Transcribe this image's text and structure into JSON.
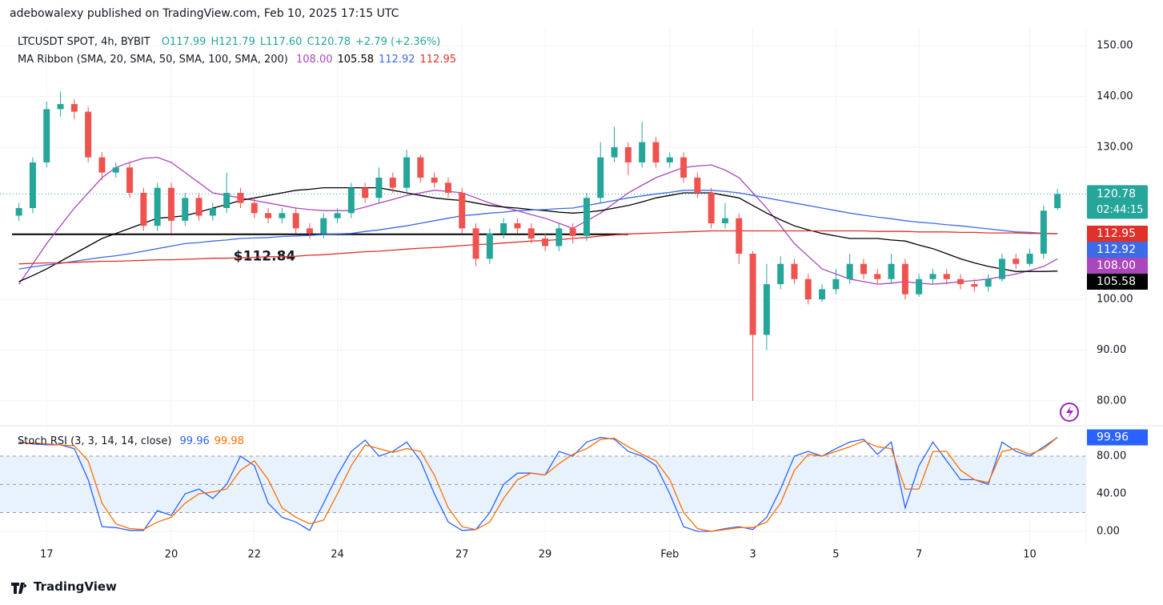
{
  "attribution": "adebowalexy published on TradingView.com, Feb 10, 2025 17:15 UTC",
  "footer": "TradingView",
  "chart_data": [
    {
      "type": "candlestick",
      "title": "LTCUSDT SPOT, 4h, BYBIT",
      "ohlc_labels": [
        "O117.99",
        "H121.79",
        "L117.60",
        "C120.78",
        "+2.79 (+2.36%)"
      ],
      "up_color": "#26a69a",
      "down_color": "#ef5350",
      "categories": [
        null,
        null,
        "17",
        null,
        null,
        null,
        null,
        null,
        null,
        null,
        null,
        "20",
        null,
        null,
        null,
        null,
        null,
        "22",
        null,
        null,
        null,
        null,
        null,
        "24",
        null,
        null,
        null,
        null,
        null,
        null,
        null,
        null,
        "27",
        null,
        null,
        null,
        null,
        null,
        "29",
        null,
        null,
        null,
        null,
        null,
        null,
        null,
        null,
        "Feb",
        null,
        null,
        null,
        null,
        null,
        "3",
        null,
        null,
        null,
        null,
        null,
        "5",
        null,
        null,
        null,
        null,
        null,
        "7",
        null,
        null,
        null,
        null,
        null,
        null,
        null,
        "10",
        null,
        null
      ],
      "open": [
        116.5,
        118,
        127,
        137.5,
        138.5,
        137,
        128,
        125,
        126,
        121,
        114.5,
        122,
        115.5,
        120,
        116.5,
        118,
        121,
        119,
        117,
        116,
        117,
        114,
        113,
        116,
        117,
        122,
        120,
        124,
        122,
        128,
        124,
        123,
        121,
        114,
        108,
        113,
        115,
        114,
        112,
        110.5,
        114,
        112.5,
        120,
        128,
        130,
        127,
        131,
        127,
        128,
        124,
        121,
        115,
        116,
        109,
        93,
        103,
        107,
        104,
        100,
        102,
        104,
        107,
        105,
        104,
        107,
        101,
        104,
        105,
        104,
        103,
        102.5,
        104,
        108,
        107,
        109,
        117.99
      ],
      "high": [
        119,
        128,
        139,
        141,
        139.5,
        138,
        129,
        127,
        127,
        122,
        123,
        123,
        121,
        121,
        119,
        125,
        122,
        120,
        118,
        118,
        118,
        115,
        117,
        118,
        123,
        123,
        126,
        125,
        129.5,
        128.5,
        125,
        124,
        122,
        115,
        114,
        116,
        116,
        115,
        113,
        115,
        115,
        121,
        131,
        134,
        131,
        135,
        132,
        129,
        129,
        125,
        122,
        119,
        117,
        109.5,
        107,
        108.5,
        108,
        105,
        103,
        106,
        109,
        108,
        106,
        109,
        108,
        105,
        106,
        106,
        105,
        104,
        105,
        109,
        109,
        110,
        118.5,
        121.79
      ],
      "low": [
        115.5,
        117,
        126,
        136,
        135.5,
        127,
        123.5,
        124,
        120,
        113.5,
        113.5,
        113,
        114.5,
        115.5,
        115.5,
        117,
        118,
        116,
        115,
        115,
        113,
        112,
        112,
        115,
        116,
        119,
        119,
        121,
        121,
        123,
        122,
        120,
        113,
        106.5,
        107,
        112,
        113,
        111,
        109.5,
        109.5,
        111,
        111.5,
        119,
        127,
        124.5,
        126,
        126,
        126,
        123,
        120,
        114,
        114,
        107,
        80,
        90,
        102,
        103,
        99,
        99.5,
        101,
        103,
        104,
        103,
        103,
        100,
        100.5,
        103,
        103,
        102,
        101.5,
        101.5,
        103.5,
        106,
        106.5,
        108,
        117.6
      ],
      "close": [
        118,
        127,
        137.5,
        138.5,
        137,
        128,
        125,
        126,
        121,
        114.5,
        122,
        115.5,
        120,
        116.5,
        118,
        121,
        119,
        117,
        116,
        117,
        114,
        113,
        116,
        117,
        122,
        120,
        124,
        122,
        128,
        124,
        123,
        121,
        114,
        108,
        113,
        115,
        114,
        112,
        110.5,
        114,
        112.5,
        120,
        128,
        130,
        127,
        131,
        127,
        128,
        124,
        121,
        115,
        116,
        109,
        93,
        103,
        107,
        104,
        100,
        102,
        104,
        107,
        105,
        104,
        107,
        101,
        104,
        105,
        104,
        103,
        102.5,
        104,
        108,
        107,
        109,
        117.5,
        120.78
      ],
      "ma_label": "MA Ribbon (SMA, 20, SMA, 50, SMA, 100, SMA, 200)",
      "series": [
        {
          "color": "#ab47bc",
          "last_label": "108.00",
          "values": [
            103,
            107,
            111,
            114.5,
            118,
            121,
            124,
            126,
            127,
            127.8,
            128,
            127,
            125,
            123,
            121,
            120.5,
            120,
            119.5,
            119,
            118.5,
            118,
            117.7,
            117.5,
            117.5,
            117.5,
            118.2,
            119,
            119.7,
            120.5,
            121,
            121.5,
            121.3,
            121,
            120,
            119,
            118.2,
            117.5,
            116.7,
            116,
            115,
            114,
            115.5,
            117,
            119,
            121,
            122.5,
            124,
            125,
            126,
            126.3,
            126.5,
            125.5,
            124,
            121,
            118,
            114.5,
            111,
            108.5,
            106,
            105,
            104,
            103.5,
            103,
            103.2,
            103.5,
            103.2,
            103,
            103.2,
            103.5,
            103.7,
            104,
            104.5,
            105,
            105.7,
            106.5,
            108
          ]
        },
        {
          "color": "#000000",
          "last_label": "105.58",
          "values": [
            103.5,
            104.7,
            106,
            107.5,
            109,
            110.5,
            112,
            113,
            114,
            115,
            116,
            116.2,
            116.5,
            117.2,
            118,
            118.7,
            119.5,
            120,
            120.5,
            121,
            121.5,
            121.7,
            122,
            122,
            122,
            122,
            122,
            121.5,
            121,
            120.5,
            120,
            119.7,
            119.5,
            119,
            118.5,
            118.2,
            118,
            117.7,
            117.5,
            117.2,
            117,
            117.2,
            117.5,
            118,
            118.5,
            119.2,
            120,
            120.5,
            121,
            121,
            121,
            120.5,
            120,
            118.5,
            117,
            115.7,
            114.5,
            113.7,
            113,
            112.5,
            112,
            112,
            112,
            111.7,
            111.5,
            110.7,
            110,
            109,
            108,
            107.2,
            106.5,
            106,
            105.5,
            105.5,
            105.5,
            105.58
          ]
        },
        {
          "color": "#3d6ae6",
          "last_label": "112.92",
          "values": [
            106,
            106.4,
            106.8,
            107.1,
            107.5,
            107.9,
            108.3,
            108.6,
            109,
            109.5,
            110,
            110.5,
            111,
            111.2,
            111.5,
            111.7,
            112,
            112.1,
            112.2,
            112.4,
            112.5,
            112.6,
            112.8,
            112.9,
            113,
            113.4,
            113.7,
            114.1,
            114.5,
            115,
            115.5,
            116,
            116.5,
            116.7,
            117,
            117.2,
            117.5,
            117.6,
            117.7,
            117.9,
            118,
            118.5,
            119,
            119.5,
            120,
            120.4,
            120.8,
            121.1,
            121.5,
            121.5,
            121.5,
            121.3,
            121,
            120.5,
            120,
            119.5,
            119,
            118.5,
            118,
            117.5,
            117,
            116.6,
            116.2,
            115.9,
            115.5,
            115.2,
            115,
            114.7,
            114.5,
            114.2,
            113.9,
            113.6,
            113.3,
            113.2,
            113,
            112.92
          ]
        },
        {
          "color": "#e0302a",
          "last_label": "112.95",
          "values": [
            107,
            107.1,
            107.2,
            107.2,
            107.3,
            107.4,
            107.5,
            107.5,
            107.6,
            107.7,
            107.8,
            107.8,
            107.9,
            108,
            108.1,
            108.1,
            108.2,
            108.3,
            108.4,
            108.4,
            108.5,
            108.7,
            108.8,
            109,
            109.2,
            109.4,
            109.5,
            109.7,
            109.9,
            110.1,
            110.2,
            110.4,
            110.6,
            110.8,
            110.9,
            111.1,
            111.3,
            111.5,
            111.6,
            111.8,
            112,
            112.2,
            112.5,
            112.7,
            112.9,
            113,
            113.1,
            113.2,
            113.3,
            113.4,
            113.5,
            113.5,
            113.5,
            113.5,
            113.5,
            113.5,
            113.5,
            113.5,
            113.5,
            113.5,
            113.5,
            113.5,
            113.4,
            113.4,
            113.4,
            113.3,
            113.3,
            113.3,
            113.2,
            113.2,
            113.1,
            113.1,
            113.1,
            113,
            113,
            112.95
          ]
        }
      ],
      "annotation": {
        "value": 112.84,
        "label": "$112.84"
      },
      "last_price": 120.78,
      "countdown": "02:44:15",
      "ylim": [
        75.4,
        153.5
      ],
      "yticks": [
        {
          "value": 150,
          "label": "150.00"
        },
        {
          "value": 140,
          "label": "140.00"
        },
        {
          "value": 130,
          "label": "130.00"
        },
        {
          "value": 100,
          "label": "100.00"
        },
        {
          "value": 90,
          "label": "90.00"
        },
        {
          "value": 80,
          "label": "80.00"
        }
      ],
      "grid": true
    },
    {
      "type": "line",
      "title": "Stoch RSI (3, 3, 14, 14, close)",
      "series": [
        {
          "color": "#2962ff",
          "values": [
            95,
            93,
            92,
            92,
            88,
            55,
            5,
            4,
            1,
            1,
            22,
            17,
            40,
            45,
            35,
            50,
            80,
            70,
            30,
            15,
            10,
            1,
            30,
            60,
            85,
            97,
            80,
            85,
            95,
            75,
            40,
            10,
            1,
            2,
            20,
            50,
            62,
            62,
            60,
            85,
            80,
            95,
            100,
            98,
            85,
            80,
            70,
            40,
            5,
            0,
            0,
            3,
            5,
            2,
            15,
            45,
            80,
            85,
            80,
            88,
            95,
            98,
            82,
            95,
            25,
            70,
            95,
            75,
            55,
            55,
            50,
            95,
            85,
            80,
            90,
            99.96
          ]
        },
        {
          "color": "#ff6d00",
          "values": [
            94,
            94,
            93,
            92,
            91,
            75,
            30,
            8,
            3,
            2,
            10,
            15,
            30,
            40,
            42,
            45,
            65,
            75,
            55,
            25,
            15,
            8,
            12,
            40,
            70,
            92,
            88,
            84,
            88,
            85,
            60,
            25,
            5,
            2,
            10,
            35,
            55,
            62,
            60,
            72,
            82,
            88,
            98,
            99,
            90,
            82,
            75,
            55,
            20,
            3,
            0,
            2,
            4,
            4,
            10,
            30,
            65,
            82,
            80,
            85,
            90,
            96,
            90,
            88,
            45,
            45,
            85,
            85,
            65,
            55,
            52,
            85,
            88,
            82,
            88,
            99.98
          ]
        }
      ],
      "levels": [
        80,
        50,
        20
      ],
      "band_color": "#e8f2fd",
      "ylim": [
        -13.6,
        109.8
      ],
      "yticks": [
        {
          "value": 80,
          "label": "80.00"
        },
        {
          "value": 40,
          "label": "40.00"
        },
        {
          "value": 0,
          "label": "0.00"
        }
      ],
      "grid": true
    }
  ]
}
